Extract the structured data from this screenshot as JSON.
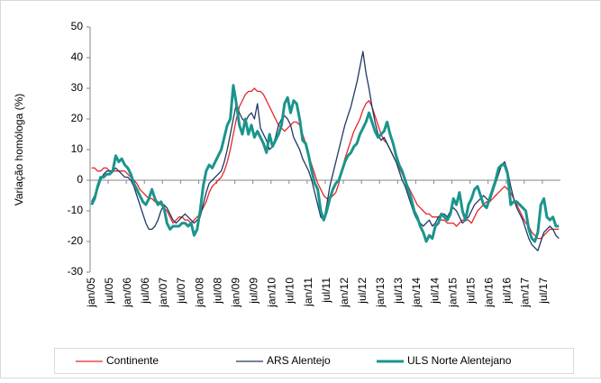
{
  "chart_data": {
    "type": "line",
    "y_label": "Variação homóloga (%)",
    "categories": [
      "jan/05",
      null,
      null,
      null,
      null,
      null,
      "jul/05",
      null,
      null,
      null,
      null,
      null,
      "jan/06",
      null,
      null,
      null,
      null,
      null,
      "jul/06",
      null,
      null,
      null,
      null,
      null,
      "jan/07",
      null,
      null,
      null,
      null,
      null,
      "jul/07",
      null,
      null,
      null,
      null,
      null,
      "jan/08",
      null,
      null,
      null,
      null,
      null,
      "jul/08",
      null,
      null,
      null,
      null,
      null,
      "jan/09",
      null,
      null,
      null,
      null,
      null,
      "jul/09",
      null,
      null,
      null,
      null,
      null,
      "jan/10",
      null,
      null,
      null,
      null,
      null,
      "jul/10",
      null,
      null,
      null,
      null,
      null,
      "jan/11",
      null,
      null,
      null,
      null,
      null,
      "jul/11",
      null,
      null,
      null,
      null,
      null,
      "jan/12",
      null,
      null,
      null,
      null,
      null,
      "jul/12",
      null,
      null,
      null,
      null,
      null,
      "jan/13",
      null,
      null,
      null,
      null,
      null,
      "jul/13",
      null,
      null,
      null,
      null,
      null,
      "jan/14",
      null,
      null,
      null,
      null,
      null,
      "jul/14",
      null,
      null,
      null,
      null,
      null,
      "jan/15",
      null,
      null,
      null,
      null,
      null,
      "jul/15",
      null,
      null,
      null,
      null,
      null,
      "jan/16",
      null,
      null,
      null,
      null,
      null,
      "jul/16",
      null,
      null,
      null,
      null,
      null,
      "jan/17",
      null,
      null,
      null,
      null,
      null,
      "jul/17",
      null,
      null,
      null,
      null,
      null
    ],
    "series": [
      {
        "name": "Continente",
        "color": "#e3262b",
        "width": 1.3,
        "values": [
          4,
          4,
          3,
          3,
          4,
          4,
          3,
          3,
          3,
          3,
          3,
          3,
          2,
          1,
          0,
          -1,
          -3,
          -4,
          -5,
          -6,
          -6,
          -7,
          -7,
          -8,
          -9,
          -10,
          -12,
          -14,
          -13,
          -12,
          -12,
          -13,
          -13,
          -14,
          -13,
          -12,
          -11,
          -9,
          -7,
          -4,
          -2,
          -1,
          0,
          1,
          3,
          6,
          10,
          15,
          20,
          24,
          26,
          28,
          29,
          29,
          30,
          29,
          29,
          28,
          26,
          24,
          22,
          20,
          18,
          17,
          16,
          17,
          18,
          19,
          19,
          18,
          15,
          12,
          8,
          5,
          2,
          -1,
          -3,
          -5,
          -6,
          -6,
          -5,
          -4,
          -1,
          3,
          7,
          10,
          13,
          16,
          18,
          20,
          23,
          25,
          26,
          24,
          21,
          18,
          15,
          13,
          12,
          10,
          8,
          6,
          4,
          2,
          0,
          -2,
          -4,
          -6,
          -8,
          -9,
          -10,
          -11,
          -11,
          -12,
          -12,
          -12,
          -13,
          -13,
          -14,
          -14,
          -14,
          -15,
          -14,
          -13,
          -13,
          -13,
          -14,
          -12,
          -10,
          -9,
          -8,
          -7,
          -7,
          -6,
          -5,
          -4,
          -3,
          -2,
          -3,
          -4,
          -6,
          -8,
          -10,
          -12,
          -14,
          -15,
          -17,
          -18,
          -19,
          -19,
          -18,
          -17,
          -16,
          -16,
          -16,
          -16
        ]
      },
      {
        "name": "ARS Alentejo",
        "color": "#1f3864",
        "width": 1.3,
        "values": [
          -7,
          -5,
          -3,
          0,
          2,
          3,
          3,
          3,
          4,
          3,
          2,
          1,
          1,
          0,
          -2,
          -5,
          -8,
          -11,
          -14,
          -16,
          -16,
          -15,
          -13,
          -10,
          -8,
          -9,
          -11,
          -13,
          -14,
          -13,
          -12,
          -11,
          -12,
          -13,
          -14,
          -13,
          -12,
          -8,
          -4,
          -1,
          0,
          1,
          2,
          3,
          6,
          10,
          15,
          20,
          25,
          22,
          20,
          19,
          21,
          22,
          20,
          25,
          17,
          15,
          13,
          10,
          11,
          14,
          18,
          20,
          21,
          20,
          18,
          14,
          12,
          10,
          7,
          5,
          3,
          0,
          -4,
          -8,
          -12,
          -13,
          -8,
          -2,
          2,
          6,
          10,
          14,
          18,
          21,
          24,
          28,
          32,
          37,
          42,
          35,
          30,
          24,
          19,
          15,
          13,
          14,
          12,
          10,
          8,
          6,
          3,
          0,
          -2,
          -5,
          -8,
          -11,
          -13,
          -14,
          -15,
          -14,
          -13,
          -15,
          -14,
          -12,
          -11,
          -11,
          -12,
          -10,
          -9,
          -10,
          -12,
          -14,
          -13,
          -12,
          -10,
          -8,
          -7,
          -6,
          -5,
          -6,
          -7,
          -4,
          -1,
          2,
          5,
          6,
          3,
          -2,
          -6,
          -9,
          -11,
          -13,
          -16,
          -19,
          -21,
          -22,
          -23,
          -20,
          -17,
          -16,
          -15,
          -16,
          -18,
          -19
        ]
      },
      {
        "name": "ULS Norte Alentejano",
        "color": "#1a958c",
        "width": 3,
        "values": [
          -8,
          -6,
          -2,
          1,
          1,
          2,
          2,
          3,
          8,
          6,
          7,
          5,
          4,
          2,
          -1,
          -3,
          -5,
          -7,
          -8,
          -6,
          -3,
          -6,
          -8,
          -7,
          -9,
          -14,
          -16,
          -15,
          -15,
          -15,
          -14,
          -14,
          -15,
          -14,
          -18,
          -16,
          -10,
          -2,
          3,
          5,
          4,
          6,
          8,
          10,
          14,
          18,
          20,
          31,
          25,
          18,
          15,
          20,
          15,
          18,
          14,
          16,
          14,
          12,
          9,
          15,
          11,
          13,
          15,
          18,
          25,
          27,
          22,
          26,
          25,
          20,
          13,
          12,
          8,
          3,
          -1,
          -3,
          -10,
          -13,
          -10,
          -6,
          -3,
          -1,
          0,
          3,
          6,
          8,
          9,
          11,
          12,
          15,
          17,
          19,
          22,
          19,
          16,
          14,
          15,
          16,
          19,
          15,
          12,
          8,
          5,
          3,
          0,
          -3,
          -6,
          -10,
          -12,
          -15,
          -17,
          -20,
          -18,
          -19,
          -15,
          -14,
          -11,
          -12,
          -13,
          -11,
          -6,
          -8,
          -4,
          -10,
          -13,
          -8,
          -6,
          -3,
          -2,
          -5,
          -8,
          -9,
          -6,
          -3,
          0,
          4,
          5,
          5,
          2,
          -8,
          -7,
          -7,
          -8,
          -9,
          -10,
          -16,
          -19,
          -20,
          -17,
          -8,
          -6,
          -12,
          -13,
          -12,
          -15,
          -15
        ]
      }
    ],
    "ylim": [
      -30,
      50
    ],
    "yticks": [
      -30,
      -20,
      -10,
      0,
      10,
      20,
      30,
      40,
      50
    ],
    "grid": false
  }
}
